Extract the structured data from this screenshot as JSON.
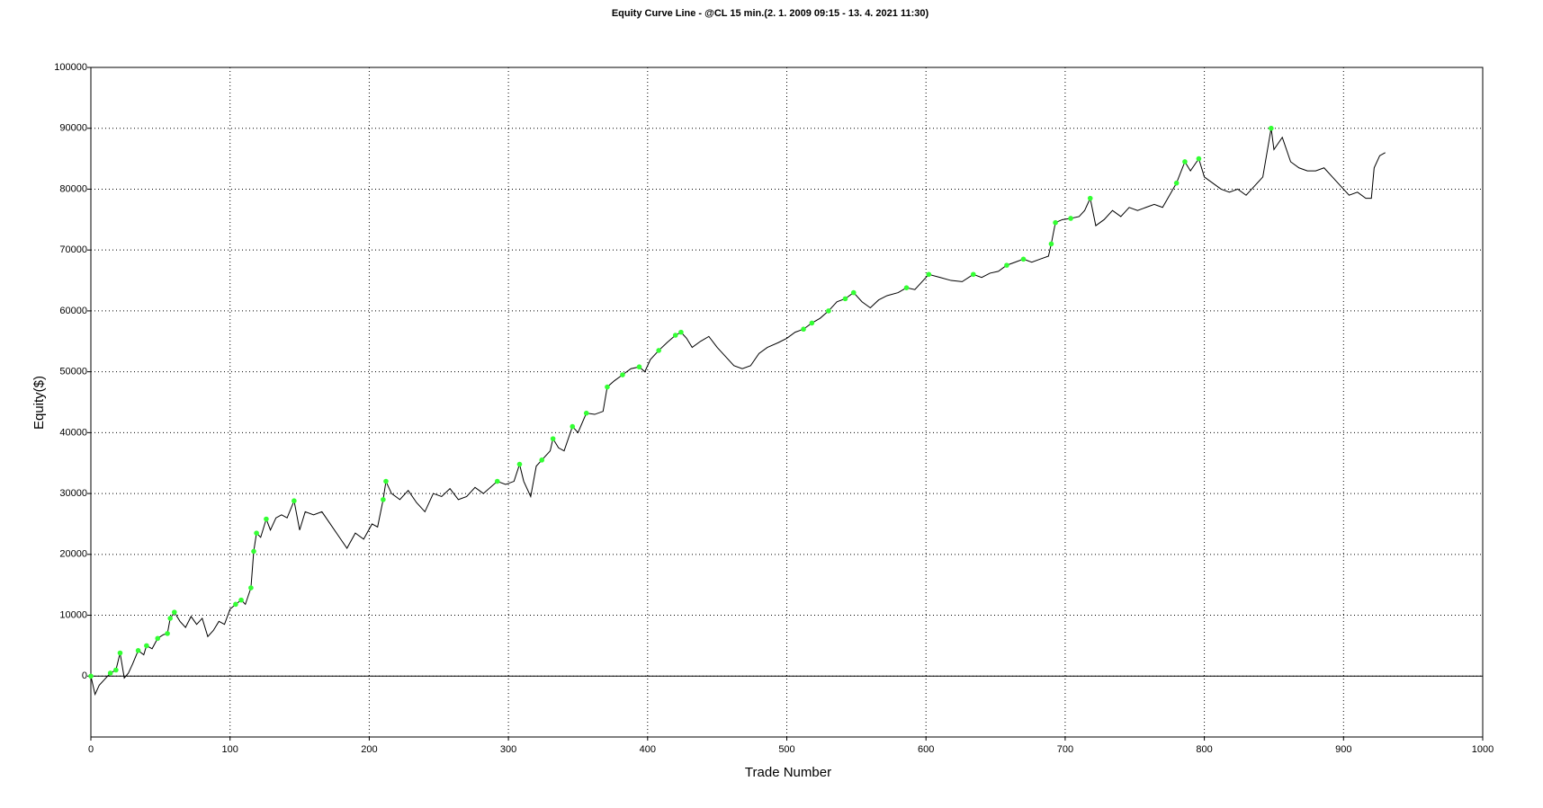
{
  "chart_data": {
    "type": "line",
    "title": "Equity Curve Line - @CL 15 min.(2. 1. 2009 09:15 - 13. 4. 2021 11:30)",
    "xlabel": "Trade Number",
    "ylabel": "Equity($)",
    "xlim": [
      0,
      1000
    ],
    "xticks": [
      0,
      100,
      200,
      300,
      400,
      500,
      600,
      700,
      800,
      900,
      1000
    ],
    "ylim": [
      -10000,
      100000
    ],
    "yticks": [
      0,
      10000,
      20000,
      30000,
      40000,
      50000,
      60000,
      70000,
      80000,
      90000,
      100000
    ],
    "grid": true,
    "series": [
      {
        "style": "line",
        "color": "#000000",
        "x": [
          0,
          3,
          6,
          10,
          14,
          18,
          21,
          24,
          27,
          30,
          34,
          38,
          40,
          44,
          48,
          52,
          55,
          57,
          60,
          64,
          68,
          72,
          76,
          80,
          84,
          88,
          92,
          96,
          100,
          104,
          108,
          111,
          115,
          117,
          119,
          122,
          126,
          129,
          133,
          137,
          141,
          146,
          150,
          154,
          160,
          166,
          172,
          178,
          184,
          190,
          196,
          202,
          206,
          210,
          212,
          216,
          222,
          228,
          234,
          240,
          246,
          252,
          258,
          264,
          270,
          276,
          282,
          292,
          298,
          304,
          308,
          311,
          316,
          320,
          324,
          330,
          332,
          336,
          340,
          346,
          350,
          356,
          362,
          368,
          371,
          376,
          382,
          388,
          394,
          398,
          402,
          408,
          414,
          420,
          424,
          428,
          432,
          438,
          444,
          450,
          456,
          462,
          468,
          474,
          480,
          486,
          494,
          500,
          506,
          512,
          518,
          524,
          530,
          536,
          542,
          548,
          554,
          560,
          566,
          572,
          580,
          586,
          592,
          598,
          602,
          610,
          618,
          626,
          634,
          640,
          646,
          652,
          658,
          664,
          670,
          676,
          682,
          688,
          690,
          693,
          698,
          704,
          710,
          714,
          718,
          722,
          728,
          734,
          740,
          746,
          752,
          758,
          764,
          770,
          775,
          780,
          786,
          790,
          796,
          800,
          806,
          812,
          818,
          824,
          830,
          836,
          842,
          848,
          850,
          856,
          862,
          868,
          874,
          880,
          886,
          892,
          898,
          904,
          910,
          916,
          920,
          922,
          926,
          930
        ],
        "values": [
          0,
          -3000,
          -1500,
          -500,
          500,
          1000,
          3800,
          -300,
          500,
          2000,
          4200,
          3500,
          5000,
          4500,
          6200,
          6800,
          7000,
          9500,
          10500,
          9000,
          8000,
          9800,
          8500,
          9500,
          6500,
          7500,
          9000,
          8500,
          11000,
          11800,
          12500,
          11800,
          14500,
          20500,
          23500,
          22800,
          25800,
          24000,
          26000,
          26500,
          26000,
          28800,
          24000,
          27000,
          26500,
          27000,
          25000,
          23000,
          21000,
          23500,
          22500,
          25000,
          24500,
          29000,
          32000,
          30000,
          29000,
          30500,
          28500,
          27000,
          30000,
          29500,
          30800,
          29000,
          29500,
          31000,
          30000,
          32000,
          31500,
          32000,
          34800,
          32000,
          29500,
          34500,
          35500,
          37000,
          39000,
          37500,
          37000,
          41000,
          40000,
          43200,
          43000,
          43500,
          47500,
          48500,
          49500,
          50500,
          50800,
          50000,
          52000,
          53500,
          54800,
          56000,
          56500,
          55500,
          54000,
          55000,
          55800,
          54000,
          52500,
          51000,
          50500,
          51000,
          53000,
          54000,
          54800,
          55500,
          56500,
          57000,
          58000,
          58800,
          60000,
          61500,
          62000,
          63000,
          61500,
          60500,
          61800,
          62500,
          63000,
          63800,
          63500,
          65000,
          66000,
          65500,
          65000,
          64800,
          66000,
          65500,
          66200,
          66500,
          67500,
          68000,
          68500,
          68000,
          68500,
          69000,
          71000,
          74500,
          75000,
          75200,
          75500,
          76500,
          78500,
          74000,
          75000,
          76500,
          75500,
          77000,
          76500,
          77000,
          77500,
          77000,
          79000,
          81000,
          84500,
          83000,
          85000,
          82000,
          81000,
          80000,
          79500,
          80000,
          79000,
          80500,
          82000,
          90000,
          86500,
          88500,
          84500,
          83500,
          83000,
          83000,
          83500,
          82000,
          80500,
          79000,
          79500,
          78500,
          78500,
          83500,
          85500,
          86000
        ]
      },
      {
        "style": "marker",
        "color": "#33ff33",
        "x": [
          0,
          14,
          18,
          21,
          34,
          40,
          48,
          55,
          57,
          60,
          104,
          108,
          115,
          117,
          119,
          126,
          146,
          210,
          212,
          292,
          308,
          324,
          332,
          346,
          356,
          371,
          382,
          394,
          408,
          420,
          424,
          512,
          518,
          530,
          542,
          548,
          586,
          602,
          634,
          658,
          670,
          690,
          693,
          704,
          718,
          780,
          786,
          796,
          848
        ],
        "values": [
          0,
          500,
          1000,
          3800,
          4200,
          5000,
          6200,
          7000,
          9500,
          10500,
          11800,
          12500,
          14500,
          20500,
          23500,
          25800,
          28800,
          29000,
          32000,
          32000,
          34800,
          35500,
          39000,
          41000,
          43200,
          47500,
          49500,
          50800,
          53500,
          56000,
          56500,
          57000,
          58000,
          60000,
          62000,
          63000,
          63800,
          66000,
          66000,
          67500,
          68500,
          71000,
          74500,
          75200,
          78500,
          81000,
          84500,
          85000,
          90000
        ]
      }
    ]
  }
}
